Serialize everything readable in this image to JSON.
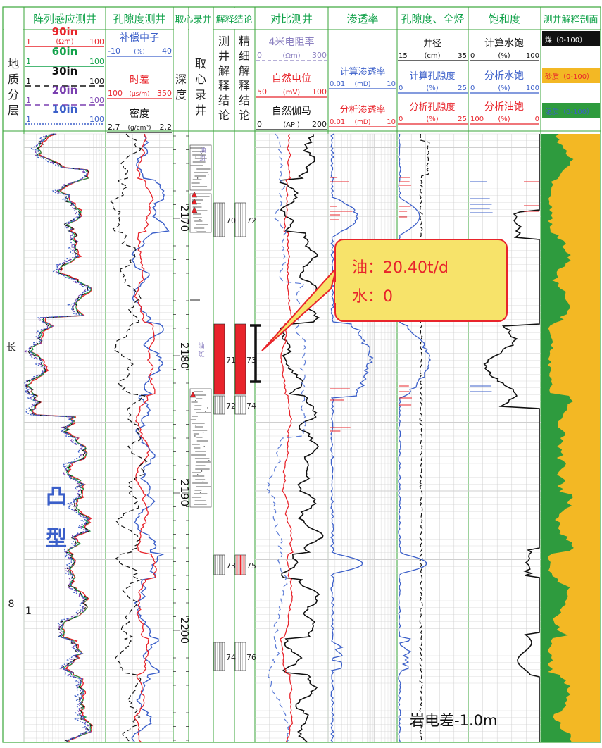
{
  "colors": {
    "frame": "#3aa63a",
    "red": "#e8242b",
    "blue": "#3b5fc9",
    "green": "#11a24a",
    "purple": "#7a3fb0",
    "black": "#111111",
    "lavender": "#8a7fc0",
    "callout_fill": "#f7e36a",
    "callout_stroke": "#e8242b",
    "clay": "#2e9b3e",
    "sand": "#f3b824"
  },
  "headers": [
    {
      "id": "array",
      "text": "阵列感应测井",
      "color": "#11a24a"
    },
    {
      "id": "porlog",
      "text": "孔隙度测井",
      "color": "#11a24a"
    },
    {
      "id": "core",
      "text": "取心录井",
      "color": "#11a24a"
    },
    {
      "id": "interp",
      "text": "解释结论",
      "color": "#11a24a"
    },
    {
      "id": "compare",
      "text": "对比测井",
      "color": "#11a24a"
    },
    {
      "id": "perm",
      "text": "渗透率",
      "color": "#11a24a"
    },
    {
      "id": "por",
      "text": "孔隙度、全烃",
      "color": "#11a24a"
    },
    {
      "id": "sat",
      "text": "饱和度",
      "color": "#11a24a"
    },
    {
      "id": "profile",
      "text": "测井解释剖面",
      "color": "#11a24a"
    }
  ],
  "strat_label": [
    "地",
    "质",
    "分",
    "层"
  ],
  "array_scales": [
    {
      "name": "90in",
      "unit": "(Ωm)",
      "min": "1",
      "max": "100",
      "color": "#e8242b",
      "dash": "solid"
    },
    {
      "name": "60in",
      "unit": "",
      "min": "1",
      "max": "100",
      "color": "#11a24a",
      "dash": "solid"
    },
    {
      "name": "30in",
      "unit": "",
      "min": "1",
      "max": "100",
      "color": "#111111",
      "dash": "dash"
    },
    {
      "name": "20in",
      "unit": "",
      "min": "1",
      "max": "100",
      "color": "#7a3fb0",
      "dash": "dash"
    },
    {
      "name": "10in",
      "unit": "",
      "min": "1",
      "max": "100",
      "color": "#3b5fc9",
      "dash": "dot"
    }
  ],
  "porlog_scales": [
    {
      "name": "补偿中子",
      "unit": "(%)",
      "min": "-10",
      "max": "40",
      "color": "#3b5fc9"
    },
    {
      "name": "时差",
      "unit": "(μs/m)",
      "min": "100",
      "max": "350",
      "color": "#e8242b"
    },
    {
      "name": "密度",
      "unit": "(g/cm³)",
      "min": "2.7",
      "max": "2.2",
      "color": "#111111"
    }
  ],
  "depth_label": [
    "深",
    "度"
  ],
  "core_label": [
    "取",
    "心",
    "录",
    "井"
  ],
  "interp_label1": [
    "测",
    "井",
    "解",
    "释",
    "结",
    "论"
  ],
  "interp_label2": [
    "精",
    "细",
    "解",
    "释",
    "结",
    "论"
  ],
  "compare_scales": [
    {
      "name": "4米电阻率",
      "unit": "(Ωm)",
      "min": "0",
      "max": "300",
      "color": "#8a7fc0"
    },
    {
      "name": "自然电位",
      "unit": "(mV)",
      "min": "50",
      "max": "100",
      "color": "#e8242b"
    },
    {
      "name": "自然伽马",
      "unit": "(API)",
      "min": "0",
      "max": "200",
      "color": "#111111"
    }
  ],
  "perm_scales": [
    {
      "name": "计算渗透率",
      "unit": "(mD)",
      "min": "0.01",
      "max": "10",
      "color": "#3b5fc9"
    },
    {
      "name": "分析渗透率",
      "unit": "(mD)",
      "min": "0.01",
      "max": "10",
      "color": "#e8242b"
    }
  ],
  "por_scales": [
    {
      "name": "井径",
      "unit": "(cm)",
      "min": "15",
      "max": "35",
      "color": "#111111"
    },
    {
      "name": "计算孔隙度",
      "unit": "(%)",
      "min": "0",
      "max": "25",
      "color": "#3b5fc9"
    },
    {
      "name": "分析孔隙度",
      "unit": "(%)",
      "min": "0",
      "max": "25",
      "color": "#e8242b"
    }
  ],
  "sat_scales": [
    {
      "name": "计算水饱",
      "unit": "(%)",
      "min": "0",
      "max": "100",
      "color": "#111111"
    },
    {
      "name": "分析水饱",
      "unit": "(%)",
      "min": "0",
      "max": "100",
      "color": "#3b5fc9"
    },
    {
      "name": "分析油饱",
      "unit": "(%)",
      "min": "100",
      "max": "0",
      "color": "#e8242b"
    }
  ],
  "profile_legend": [
    {
      "text": "煤（0-100）",
      "bg": "#111111",
      "color": "#ffffff"
    },
    {
      "text": "砂质（0-100）",
      "bg": "#f3b824",
      "color": "#e8242b"
    },
    {
      "text": "泥质（0-100）",
      "bg": "#2e9b3e",
      "color": "#3b5fc9"
    }
  ],
  "depth_ticks": [
    "2170",
    "2180",
    "2190",
    "2200"
  ],
  "strat_marks": [
    "长",
    "8",
    "1"
  ],
  "core_notes": [
    "油",
    "斑",
    "油",
    "斑"
  ],
  "layers": [
    {
      "code": "70",
      "code2": "72",
      "type": "plain"
    },
    {
      "code": "71",
      "code2": "73",
      "type": "red"
    },
    {
      "code": "72",
      "code2": "74",
      "type": "plain"
    },
    {
      "code": "73",
      "code2": "75",
      "type": "redstripe"
    },
    {
      "code": "74",
      "code2": "76",
      "type": "plain"
    }
  ],
  "callout": {
    "oil": "油：20.40t/d",
    "water": "水：0"
  },
  "big_label": [
    "凸",
    "型"
  ],
  "footnote": "岩电差-1.0m"
}
